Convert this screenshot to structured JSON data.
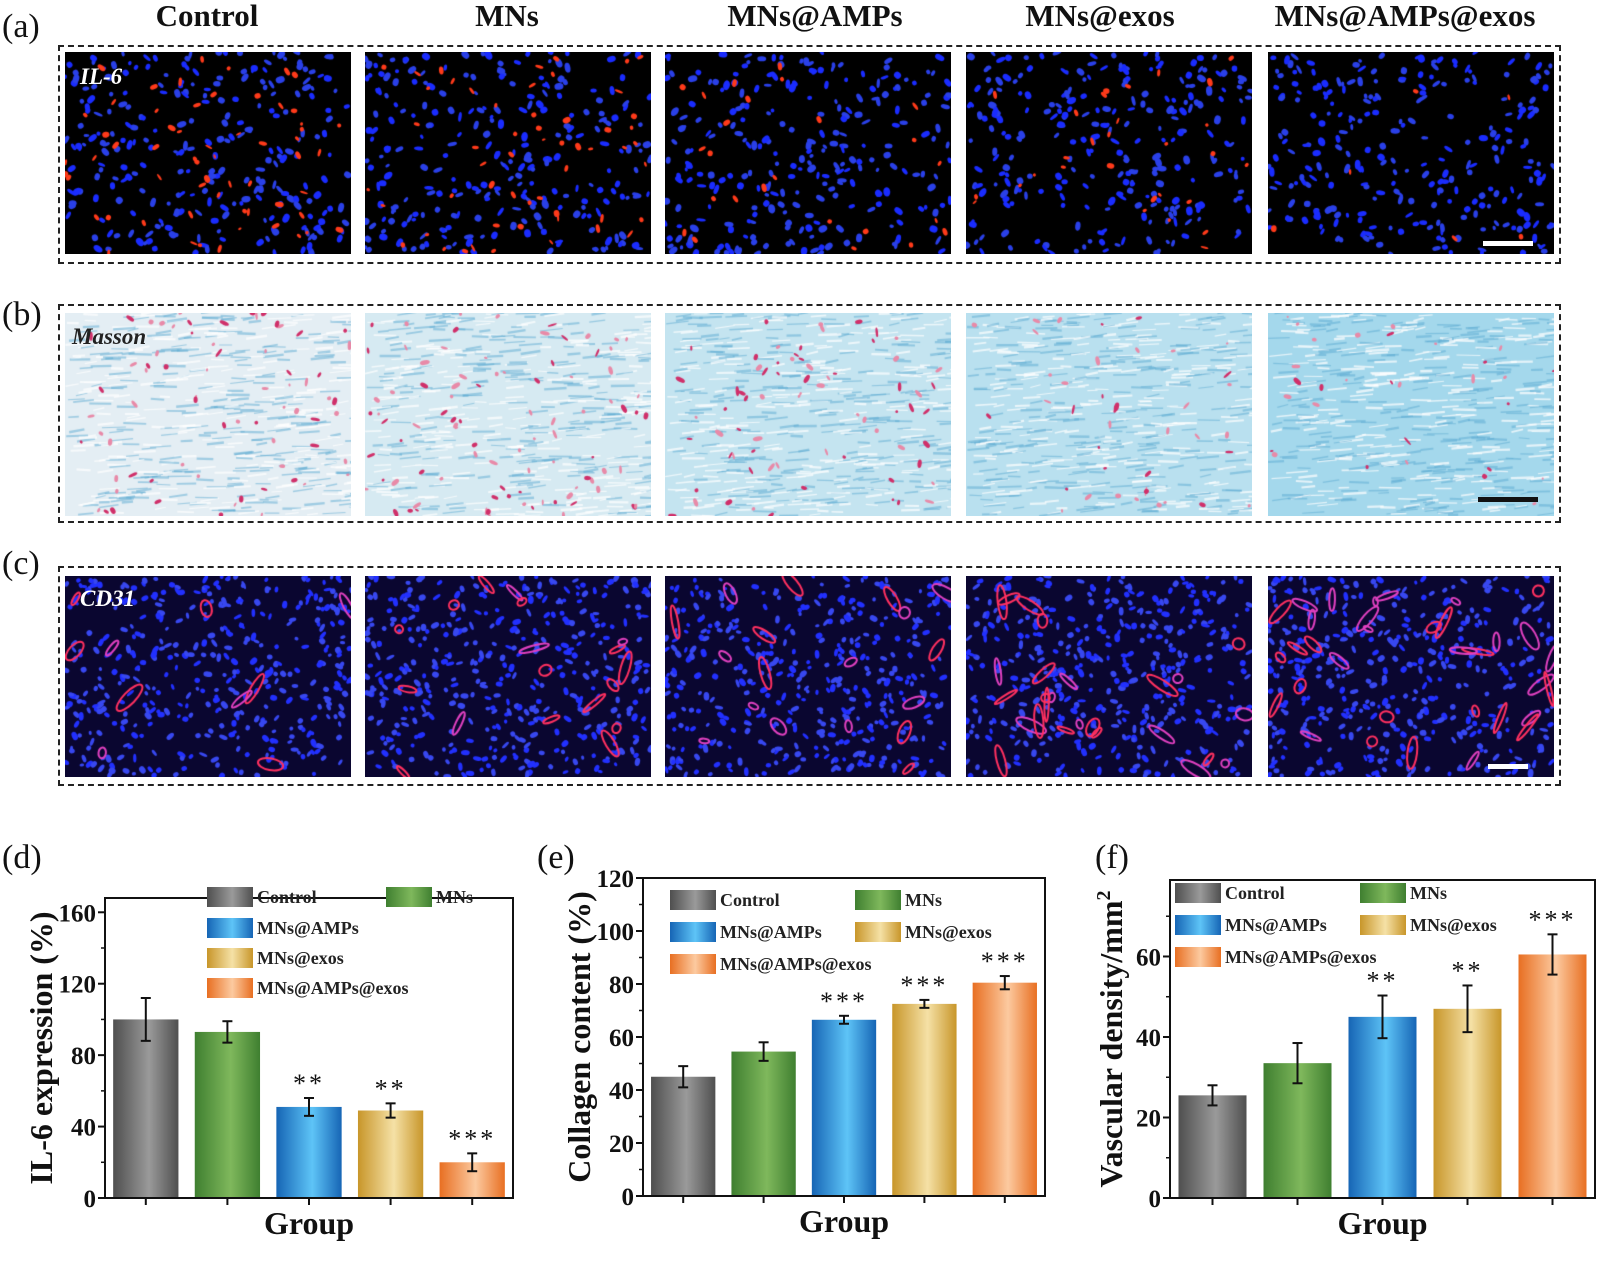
{
  "columns": [
    "Control",
    "MNs",
    "MNs@AMPs",
    "MNs@exos",
    "MNs@AMPs@exos"
  ],
  "panels": {
    "a": {
      "letter": "(a)",
      "stain": "IL-6"
    },
    "b": {
      "letter": "(b)",
      "stain": "Masson"
    },
    "c": {
      "letter": "(c)",
      "stain": "CD31"
    }
  },
  "colors": {
    "Control": [
      "#4f4f4f",
      "#9a9a9a"
    ],
    "MNs": [
      "#3f7f30",
      "#7fb85c"
    ],
    "MNs@AMPs": [
      "#1665b5",
      "#5ec4f7"
    ],
    "MNs@exos": [
      "#c8962a",
      "#f5e1a6"
    ],
    "MNs@AMPs@exos": [
      "#e86f22",
      "#fccaa0"
    ]
  },
  "chart_data": [
    {
      "type": "bar",
      "letter": "(d)",
      "categories": [
        "Control",
        "MNs",
        "MNs@AMPs",
        "MNs@exos",
        "MNs@AMPs@exos"
      ],
      "values": [
        100,
        93,
        51,
        49,
        20
      ],
      "errors": [
        12,
        6,
        5,
        4,
        5
      ],
      "significance": [
        "",
        "",
        "**",
        "**",
        "***"
      ],
      "xlabel": "Group",
      "ylabel": "IL-6 expression (%)",
      "ylabel_sup": "",
      "ylim": [
        0,
        168
      ],
      "yticks": [
        0,
        40,
        80,
        120,
        160
      ],
      "yminor": [
        20,
        60,
        100,
        140
      ],
      "legend": "top-right",
      "grid": false
    },
    {
      "type": "bar",
      "letter": "(e)",
      "categories": [
        "Control",
        "MNs",
        "MNs@AMPs",
        "MNs@exos",
        "MNs@AMPs@exos"
      ],
      "values": [
        45,
        54.5,
        66.5,
        72.5,
        80.5
      ],
      "errors": [
        4,
        3.5,
        1.5,
        1.5,
        2.5
      ],
      "significance": [
        "",
        "",
        "***",
        "***",
        "***"
      ],
      "xlabel": "Group",
      "ylabel": "Collagen content (%)",
      "ylabel_sup": "",
      "ylim": [
        0,
        120
      ],
      "yticks": [
        0,
        20,
        40,
        60,
        80,
        100,
        120
      ],
      "yminor": [
        10,
        30,
        50,
        70,
        90,
        110
      ],
      "legend": "top",
      "grid": false
    },
    {
      "type": "bar",
      "letter": "(f)",
      "categories": [
        "Control",
        "MNs",
        "MNs@AMPs",
        "MNs@exos",
        "MNs@AMPs@exos"
      ],
      "values": [
        25.5,
        33.5,
        45,
        47,
        60.5
      ],
      "errors": [
        2.5,
        5,
        5.3,
        5.8,
        5
      ],
      "significance": [
        "",
        "",
        "**",
        "**",
        "***"
      ],
      "xlabel": "Group",
      "ylabel": "Vascular density/mm",
      "ylabel_sup": "2",
      "ylim": [
        0,
        79
      ],
      "yticks": [
        0,
        20,
        40,
        60
      ],
      "yminor": [
        10,
        30,
        50,
        70
      ],
      "legend": "top",
      "grid": false
    }
  ]
}
